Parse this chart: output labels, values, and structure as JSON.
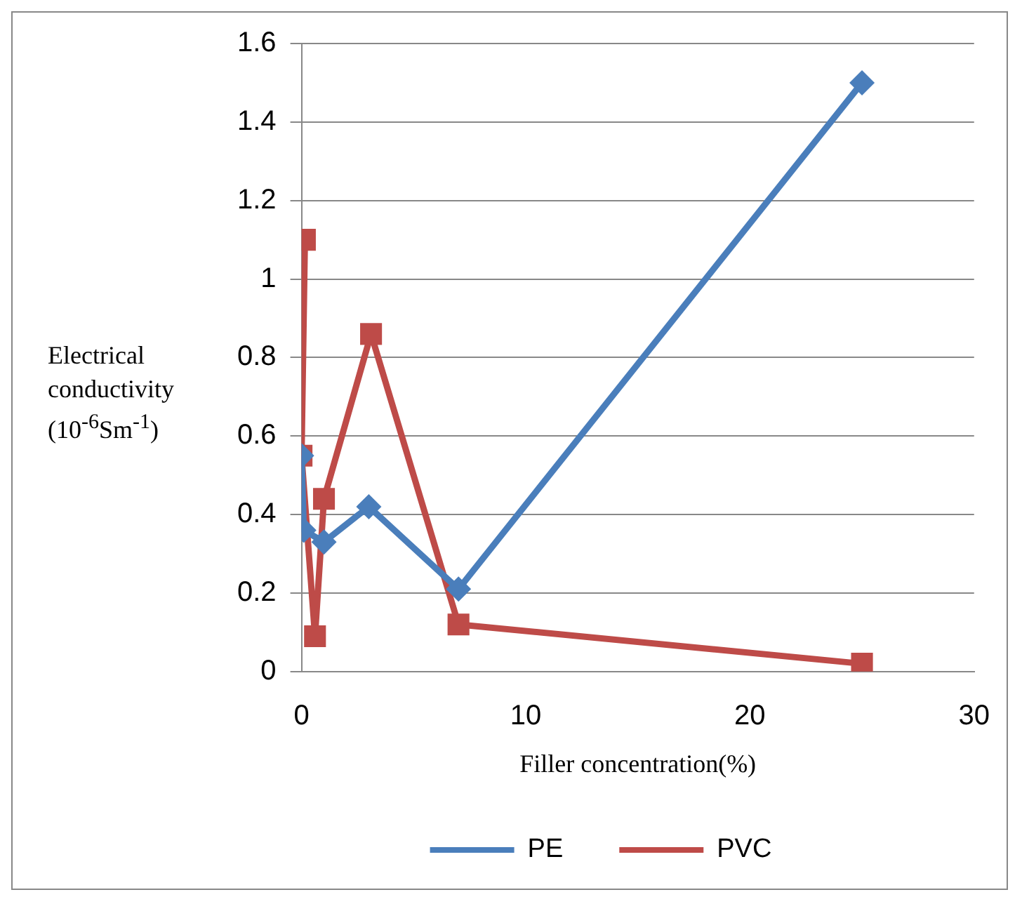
{
  "chart_data": {
    "type": "line",
    "xlabel": "Filler concentration(%)",
    "ylabel": "Electrical conductivity (10$^{-6}$Sm$^{-1}$)",
    "xlim": [
      0,
      30
    ],
    "xticks": [
      0,
      10,
      20,
      30
    ],
    "ylim": [
      0,
      1.6
    ],
    "yticks": [
      0,
      0.2,
      0.4,
      0.6,
      0.8,
      1,
      1.2,
      1.4,
      1.6
    ],
    "grid": "y",
    "legend": "bottom",
    "line_style": "solid",
    "series": [
      {
        "name": "PE",
        "color": "#4a7ebb",
        "marker": "diamond",
        "x": [
          0,
          0.1,
          1,
          3,
          7,
          25
        ],
        "values": [
          0.55,
          0.36,
          0.33,
          0.42,
          0.21,
          1.5
        ]
      },
      {
        "name": "PVC",
        "color": "#be4b48",
        "marker": "square",
        "x": [
          0.15,
          0,
          0.6,
          1,
          3.1,
          7,
          25
        ],
        "values": [
          1.1,
          0.55,
          0.09,
          0.44,
          0.86,
          0.12,
          0.02
        ]
      }
    ]
  }
}
